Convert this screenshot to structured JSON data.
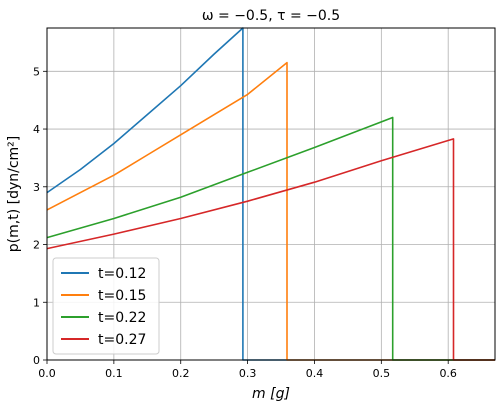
{
  "chart_data": {
    "type": "line",
    "title": "ω = −0.5,  τ = −0.5",
    "xlabel": "m [g]",
    "ylabel": "p(m,t)  [dyn/cm²]",
    "xlim": [
      0.0,
      0.67
    ],
    "ylim": [
      0,
      5.75
    ],
    "xticks": [
      "0.0",
      "0.1",
      "0.2",
      "0.3",
      "0.4",
      "0.5",
      "0.6"
    ],
    "yticks": [
      "0",
      "1",
      "2",
      "3",
      "4",
      "5"
    ],
    "grid": true,
    "legend_position": "lower-left",
    "series": [
      {
        "name": "t=0.12",
        "color": "#1f77b4",
        "front": 0.293,
        "x": [
          0.0,
          0.05,
          0.1,
          0.15,
          0.2,
          0.25,
          0.293
        ],
        "y": [
          2.9,
          3.3,
          3.75,
          4.25,
          4.75,
          5.3,
          5.75
        ]
      },
      {
        "name": "t=0.15",
        "color": "#ff7f0e",
        "front": 0.359,
        "x": [
          0.0,
          0.05,
          0.1,
          0.15,
          0.2,
          0.25,
          0.3,
          0.359
        ],
        "y": [
          2.6,
          2.9,
          3.2,
          3.55,
          3.9,
          4.25,
          4.6,
          5.15
        ]
      },
      {
        "name": "t=0.22",
        "color": "#2ca02c",
        "front": 0.517,
        "x": [
          0.0,
          0.1,
          0.2,
          0.3,
          0.4,
          0.517
        ],
        "y": [
          2.12,
          2.45,
          2.82,
          3.25,
          3.68,
          4.2
        ]
      },
      {
        "name": "t=0.27",
        "color": "#d62728",
        "front": 0.608,
        "x": [
          0.0,
          0.1,
          0.2,
          0.3,
          0.4,
          0.5,
          0.608
        ],
        "y": [
          1.93,
          2.18,
          2.45,
          2.75,
          3.08,
          3.45,
          3.83
        ]
      }
    ]
  }
}
